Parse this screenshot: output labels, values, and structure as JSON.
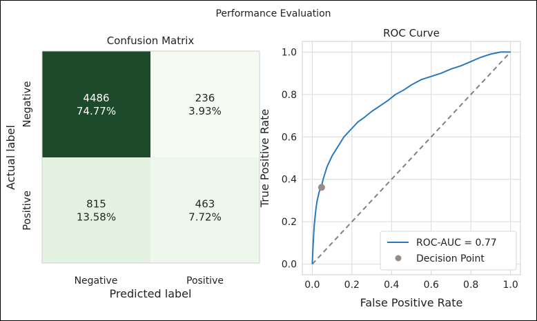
{
  "figure": {
    "suptitle": "Performance Evaluation"
  },
  "chart_data": [
    {
      "type": "heatmap",
      "title": "Confusion Matrix",
      "xlabel": "Predicted label",
      "ylabel": "Actual label",
      "x_categories": [
        "Negative",
        "Positive"
      ],
      "y_categories": [
        "Negative",
        "Positive"
      ],
      "cells": [
        [
          {
            "count": "4486",
            "percent": "74.77%"
          },
          {
            "count": "236",
            "percent": "3.93%"
          }
        ],
        [
          {
            "count": "815",
            "percent": "13.58%"
          },
          {
            "count": "463",
            "percent": "7.72%"
          }
        ]
      ],
      "values": [
        [
          4486,
          236
        ],
        [
          815,
          463
        ]
      ],
      "colormap": "Greens",
      "colors": {
        "max": "#1c4a2a",
        "low": "#e2f1df",
        "min": "#f5faf3",
        "text_dark": "#ffffff",
        "text_light": "#262626"
      }
    },
    {
      "type": "line",
      "title": "ROC Curve",
      "xlabel": "False Positive Rate",
      "ylabel": "True Positive Rate",
      "xlim": [
        -0.05,
        1.05
      ],
      "ylim": [
        -0.05,
        1.05
      ],
      "xticks": [
        "0.0",
        "0.2",
        "0.4",
        "0.6",
        "0.8",
        "1.0"
      ],
      "yticks": [
        "0.0",
        "0.2",
        "0.4",
        "0.6",
        "0.8",
        "1.0"
      ],
      "grid": true,
      "legend_position": "lower-right",
      "series": [
        {
          "name": "ROC-AUC = 0.77",
          "color": "#2878c0",
          "x": [
            0.0,
            0.003,
            0.006,
            0.01,
            0.015,
            0.02,
            0.025,
            0.03,
            0.035,
            0.04,
            0.047,
            0.055,
            0.065,
            0.075,
            0.085,
            0.1,
            0.12,
            0.14,
            0.16,
            0.18,
            0.2,
            0.23,
            0.26,
            0.3,
            0.34,
            0.38,
            0.42,
            0.46,
            0.5,
            0.55,
            0.6,
            0.65,
            0.7,
            0.75,
            0.8,
            0.85,
            0.9,
            0.95,
            1.0
          ],
          "y": [
            0.0,
            0.06,
            0.12,
            0.18,
            0.23,
            0.27,
            0.3,
            0.32,
            0.34,
            0.355,
            0.37,
            0.4,
            0.43,
            0.46,
            0.48,
            0.51,
            0.54,
            0.57,
            0.6,
            0.62,
            0.64,
            0.67,
            0.69,
            0.72,
            0.745,
            0.77,
            0.8,
            0.82,
            0.845,
            0.87,
            0.885,
            0.9,
            0.92,
            0.935,
            0.955,
            0.975,
            0.99,
            1.0,
            1.0
          ]
        },
        {
          "name": "",
          "color": "#808080",
          "style": "dashed",
          "x": [
            0.0,
            1.0
          ],
          "y": [
            0.0,
            1.0
          ]
        }
      ],
      "points": [
        {
          "name": "Decision Point",
          "x": 0.047,
          "y": 0.362,
          "color": "#9a8a86"
        }
      ]
    }
  ]
}
